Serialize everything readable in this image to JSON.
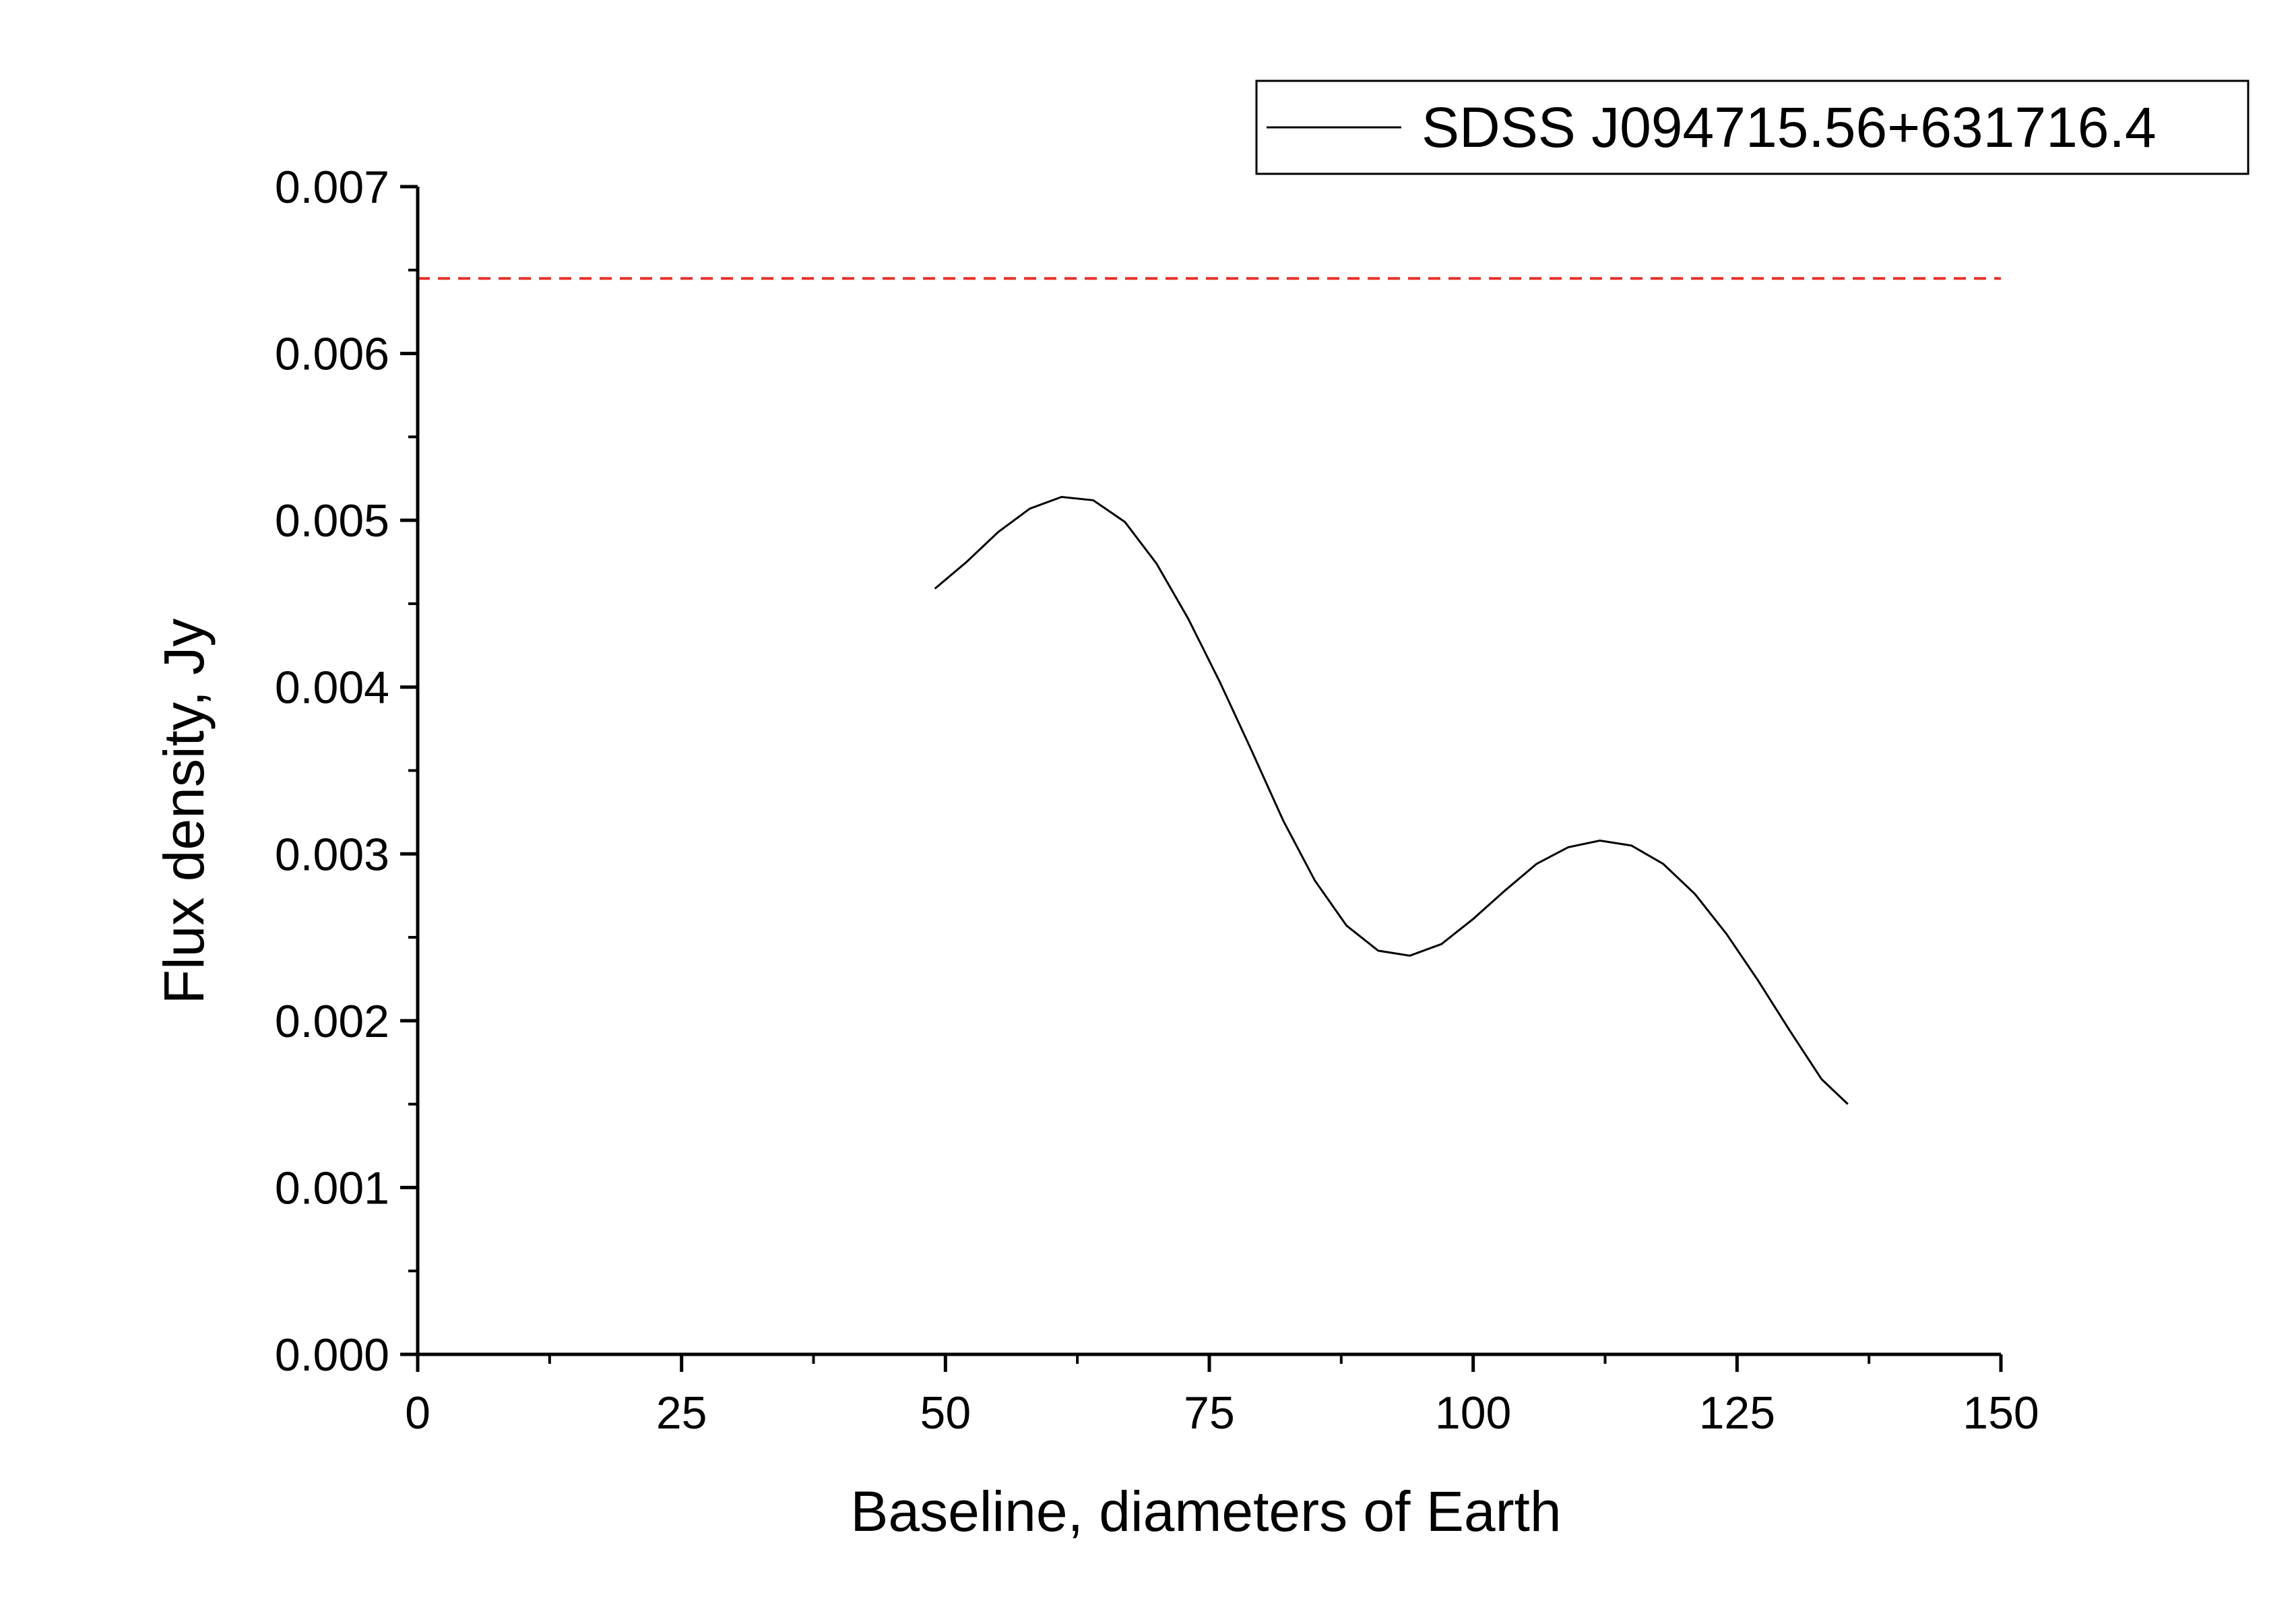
{
  "chart_data": {
    "type": "line",
    "title": "",
    "xlabel": "Baseline, diameters of Earth",
    "ylabel": "Flux density, Jy",
    "xlim": [
      0,
      150
    ],
    "ylim": [
      0,
      0.007
    ],
    "x_ticks": [
      0,
      25,
      50,
      75,
      100,
      125,
      150
    ],
    "x_tick_labels": [
      "0",
      "25",
      "50",
      "75",
      "100",
      "125",
      "150"
    ],
    "y_ticks": [
      0,
      0.001,
      0.002,
      0.003,
      0.004,
      0.005,
      0.006,
      0.007
    ],
    "y_tick_labels": [
      "0.000",
      "0.001",
      "0.002",
      "0.003",
      "0.004",
      "0.005",
      "0.006",
      "0.007"
    ],
    "grid": false,
    "legend_position": "top-right",
    "series": [
      {
        "name": "SDSS J094715.56+631716.4",
        "color": "#000000",
        "style": "solid",
        "x": [
          49,
          52,
          55,
          58,
          61,
          64,
          67,
          70,
          73,
          76,
          79,
          82,
          85,
          88,
          91,
          94,
          97,
          100,
          103,
          106,
          109,
          112,
          115,
          118,
          121,
          124,
          127,
          130,
          133,
          135.5
        ],
        "y": [
          0.00459,
          0.00475,
          0.00493,
          0.00507,
          0.00514,
          0.00512,
          0.00499,
          0.00474,
          0.00441,
          0.00403,
          0.00362,
          0.0032,
          0.00284,
          0.00257,
          0.00242,
          0.00239,
          0.00246,
          0.00261,
          0.00278,
          0.00294,
          0.00304,
          0.00308,
          0.00305,
          0.00294,
          0.00276,
          0.00252,
          0.00224,
          0.00194,
          0.00165,
          0.0015
        ]
      },
      {
        "color": "#e8302a",
        "style": "dashed",
        "x": [
          0,
          150
        ],
        "y": [
          0.00645,
          0.00645
        ]
      }
    ]
  }
}
